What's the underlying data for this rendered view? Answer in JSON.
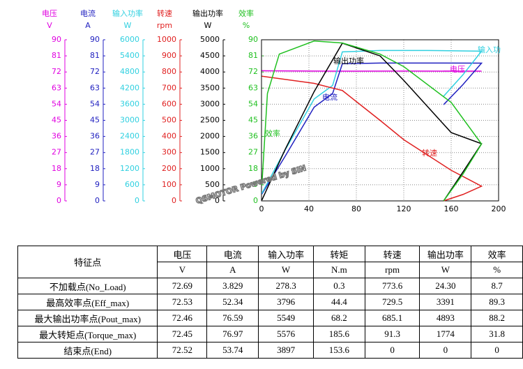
{
  "chart_data": {
    "type": "line",
    "xlim": [
      0,
      200
    ],
    "xticks": [
      0,
      40,
      80,
      120,
      160,
      200
    ],
    "grid": true,
    "axes": [
      {
        "label": "电压",
        "unit": "V",
        "color": "#e000e0",
        "ylim": [
          0,
          90
        ],
        "yticks": [
          0,
          9,
          18,
          27,
          36,
          45,
          54,
          63,
          72,
          81,
          90
        ]
      },
      {
        "label": "电流",
        "unit": "A",
        "color": "#2020c0",
        "ylim": [
          0,
          90
        ],
        "yticks": [
          0,
          9,
          18,
          27,
          36,
          45,
          54,
          63,
          72,
          81,
          90
        ]
      },
      {
        "label": "输入功率",
        "unit": "W",
        "color": "#30d0e0",
        "ylim": [
          0,
          6000
        ],
        "yticks": [
          0,
          600,
          1200,
          1800,
          2400,
          3000,
          3600,
          4200,
          4800,
          5400,
          6000
        ]
      },
      {
        "label": "转速",
        "unit": "rpm",
        "color": "#e02020",
        "ylim": [
          0,
          1000
        ],
        "yticks": [
          0,
          100,
          200,
          300,
          400,
          500,
          600,
          700,
          800,
          900,
          1000
        ]
      },
      {
        "label": "输出功率",
        "unit": "W",
        "color": "#000000",
        "ylim": [
          0,
          5000
        ],
        "yticks": [
          0,
          500,
          1000,
          1500,
          2000,
          2500,
          3000,
          3500,
          4000,
          4500,
          5000
        ]
      },
      {
        "label": "效率",
        "unit": "%",
        "color": "#20c020",
        "ylim": [
          0,
          90
        ],
        "yticks": [
          0,
          9,
          18,
          27,
          36,
          45,
          54,
          63,
          72,
          81,
          90
        ]
      }
    ],
    "series": [
      {
        "label": "电压",
        "axis": 0,
        "color": "#e000e0",
        "x": [
          0.3,
          44.4,
          68.2,
          120,
          185.6,
          153.6
        ],
        "values": [
          72.69,
          72.53,
          72.46,
          72.5,
          72.45,
          72.52
        ]
      },
      {
        "label": "电流",
        "axis": 1,
        "color": "#2020c0",
        "x": [
          0.3,
          20,
          44.4,
          60,
          68.2,
          100,
          140,
          185.6,
          170,
          153.6
        ],
        "values": [
          3.829,
          25,
          52.34,
          60,
          76.59,
          77,
          77,
          76.97,
          65,
          53.74
        ]
      },
      {
        "label": "输入功",
        "axis": 2,
        "color": "#30d0e0",
        "x": [
          0.3,
          20,
          44.4,
          60,
          68.2,
          100,
          140,
          185.6,
          170,
          153.6
        ],
        "values": [
          278.3,
          1900,
          3796,
          4300,
          5549,
          5600,
          5600,
          5576,
          4700,
          3897
        ]
      },
      {
        "label": "转速",
        "axis": 3,
        "color": "#e02020",
        "x": [
          0.3,
          44.4,
          60,
          68.2,
          100,
          120,
          160,
          185.6,
          170,
          153.6
        ],
        "values": [
          773.6,
          729.5,
          700,
          685.1,
          500,
          380,
          190,
          91.3,
          40,
          0
        ]
      },
      {
        "label": "输出功率",
        "axis": 4,
        "color": "#000000",
        "x": [
          0.3,
          20,
          44.4,
          68.2,
          100,
          120,
          160,
          185.6,
          170,
          153.6
        ],
        "values": [
          24.3,
          1600,
          3391,
          4893,
          4500,
          3740,
          2120,
          1774,
          900,
          0
        ]
      },
      {
        "label": "效率",
        "axis": 5,
        "color": "#20c020",
        "x": [
          0.3,
          5,
          15,
          44.4,
          68.2,
          100,
          120,
          160,
          185.6,
          170,
          153.6
        ],
        "values": [
          8.7,
          60,
          82,
          89.3,
          88.2,
          82,
          75,
          55,
          31.8,
          15,
          0
        ]
      }
    ],
    "watermark": "QSMOTOR Powered by SIN"
  },
  "table": {
    "header": [
      "特征点",
      "电压",
      "电流",
      "输入功率",
      "转矩",
      "转速",
      "输出功率",
      "效率"
    ],
    "units": [
      "V",
      "A",
      "W",
      "N.m",
      "rpm",
      "W",
      "%"
    ],
    "rows": [
      [
        "不加载点(No_Load)",
        "72.69",
        "3.829",
        "278.3",
        "0.3",
        "773.6",
        "24.30",
        "8.7"
      ],
      [
        "最高效率点(Eff_max)",
        "72.53",
        "52.34",
        "3796",
        "44.4",
        "729.5",
        "3391",
        "89.3"
      ],
      [
        "最大输出功率点(Pout_max)",
        "72.46",
        "76.59",
        "5549",
        "68.2",
        "685.1",
        "4893",
        "88.2"
      ],
      [
        "最大转矩点(Torque_max)",
        "72.45",
        "76.97",
        "5576",
        "185.6",
        "91.3",
        "1774",
        "31.8"
      ],
      [
        "结束点(End)",
        "72.52",
        "53.74",
        "3897",
        "153.6",
        "0",
        "0",
        "0"
      ]
    ]
  }
}
